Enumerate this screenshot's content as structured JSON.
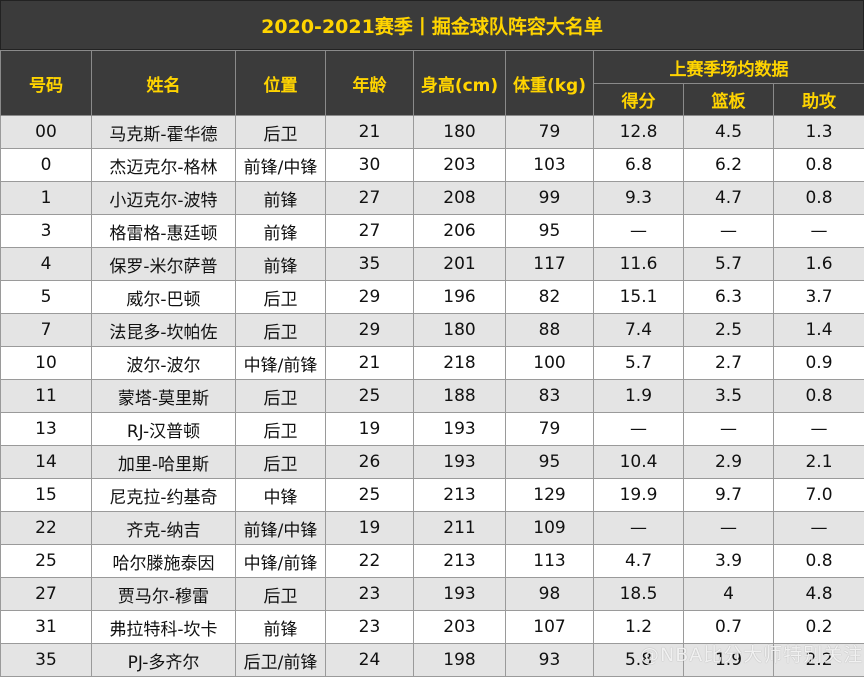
{
  "title": "2020-2021赛季丨掘金球队阵容大名单",
  "headers": {
    "number": "号码",
    "name": "姓名",
    "position": "位置",
    "age": "年龄",
    "height": "身高(cm)",
    "weight": "体重(kg)",
    "last_season": "上赛季场均数据",
    "points": "得分",
    "rebounds": "篮板",
    "assists": "助攻"
  },
  "rows": [
    [
      "00",
      "马克斯-霍华德",
      "后卫",
      "21",
      "180",
      "79",
      "12.8",
      "4.5",
      "1.3"
    ],
    [
      "0",
      "杰迈克尔-格林",
      "前锋/中锋",
      "30",
      "203",
      "103",
      "6.8",
      "6.2",
      "0.8"
    ],
    [
      "1",
      "小迈克尔-波特",
      "前锋",
      "27",
      "208",
      "99",
      "9.3",
      "4.7",
      "0.8"
    ],
    [
      "3",
      "格雷格-惠廷顿",
      "前锋",
      "27",
      "206",
      "95",
      "—",
      "—",
      "—"
    ],
    [
      "4",
      "保罗-米尔萨普",
      "前锋",
      "35",
      "201",
      "117",
      "11.6",
      "5.7",
      "1.6"
    ],
    [
      "5",
      "威尔-巴顿",
      "后卫",
      "29",
      "196",
      "82",
      "15.1",
      "6.3",
      "3.7"
    ],
    [
      "7",
      "法昆多-坎帕佐",
      "后卫",
      "29",
      "180",
      "88",
      "7.4",
      "2.5",
      "1.4"
    ],
    [
      "10",
      "波尔-波尔",
      "中锋/前锋",
      "21",
      "218",
      "100",
      "5.7",
      "2.7",
      "0.9"
    ],
    [
      "11",
      "蒙塔-莫里斯",
      "后卫",
      "25",
      "188",
      "83",
      "1.9",
      "3.5",
      "0.8"
    ],
    [
      "13",
      "RJ-汉普顿",
      "后卫",
      "19",
      "193",
      "79",
      "—",
      "—",
      "—"
    ],
    [
      "14",
      "加里-哈里斯",
      "后卫",
      "26",
      "193",
      "95",
      "10.4",
      "2.9",
      "2.1"
    ],
    [
      "15",
      "尼克拉-约基奇",
      "中锋",
      "25",
      "213",
      "129",
      "19.9",
      "9.7",
      "7.0"
    ],
    [
      "22",
      "齐克-纳吉",
      "前锋/中锋",
      "19",
      "211",
      "109",
      "—",
      "—",
      "—"
    ],
    [
      "25",
      "哈尔滕施泰因",
      "中锋/前锋",
      "22",
      "213",
      "113",
      "4.7",
      "3.9",
      "0.8"
    ],
    [
      "27",
      "贾马尔-穆雷",
      "后卫",
      "23",
      "193",
      "98",
      "18.5",
      "4",
      "4.8"
    ],
    [
      "31",
      "弗拉特科-坎卡",
      "前锋",
      "23",
      "203",
      "107",
      "1.2",
      "0.7",
      "0.2"
    ],
    [
      "35",
      "PJ-多齐尔",
      "后卫/前锋",
      "24",
      "198",
      "93",
      "5.8",
      "1.9",
      "2.2"
    ]
  ],
  "watermark": "@NBA比分大师特别关注"
}
